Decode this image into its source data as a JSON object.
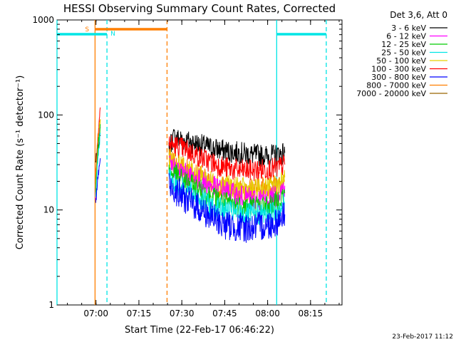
{
  "chart_data": {
    "type": "line",
    "title": "HESSI Observing Summary Count Rates, Corrected",
    "xlabel": "Start Time (22-Feb-17 06:46:22)",
    "ylabel": "Corrected Count Rate (s⁻¹ detector⁻¹)",
    "y_scale": "log",
    "ylim": [
      1,
      1000
    ],
    "xlim": [
      "06:46:22",
      "08:26:00"
    ],
    "x_ticks": [
      "07:00",
      "07:15",
      "07:30",
      "07:45",
      "08:00",
      "08:15"
    ],
    "y_ticks": [
      "1",
      "10",
      "100",
      "1000"
    ],
    "grid": false,
    "legend_position": "right",
    "legend_header": "Det 3,6, Att 0",
    "timestamp": "23-Feb-2017 11:12",
    "flags": [
      {
        "label": "S",
        "color": "#ff7f00",
        "start": "06:59:40",
        "end": "07:24:50"
      },
      {
        "label": "N",
        "color": "#00e5e5",
        "start": "06:46:22",
        "end": "07:03:50"
      },
      {
        "label": "",
        "color": "#00e5e5",
        "start": "08:03:10",
        "end": "08:20:30"
      }
    ],
    "series": [
      {
        "name": "3 - 6 keV",
        "color": "#000000",
        "times": [
          "06:59:50",
          "07:00:40",
          "07:01:30",
          "07:25:30",
          "07:27:00",
          "07:30:00",
          "07:35:00",
          "07:40:00",
          "07:45:00",
          "07:50:00",
          "07:55:00",
          "08:00:00",
          "08:03:00",
          "08:06:00"
        ],
        "values": [
          32,
          45,
          60,
          45,
          58,
          55,
          50,
          45,
          42,
          40,
          38,
          37,
          38,
          40
        ]
      },
      {
        "name": "6 - 12 keV",
        "color": "#ff00ff",
        "times": [
          "06:59:50",
          "07:00:40",
          "07:01:30",
          "07:25:30",
          "07:27:00",
          "07:30:00",
          "07:35:00",
          "07:40:00",
          "07:45:00",
          "07:50:00",
          "07:55:00",
          "08:00:00",
          "08:03:00",
          "08:06:00"
        ],
        "values": [
          14,
          40,
          75,
          30,
          28,
          25,
          21,
          18,
          16,
          14,
          13,
          13,
          14,
          18
        ]
      },
      {
        "name": "12 - 25 keV",
        "color": "#00cc00",
        "times": [
          "06:59:50",
          "07:00:40",
          "07:01:30",
          "07:25:30",
          "07:27:00",
          "07:30:00",
          "07:35:00",
          "07:40:00",
          "07:45:00",
          "07:50:00",
          "07:55:00",
          "08:00:00",
          "08:03:00",
          "08:06:00"
        ],
        "values": [
          15,
          42,
          80,
          25,
          24,
          21,
          17,
          14,
          12,
          11,
          11,
          11,
          12,
          15
        ]
      },
      {
        "name": "25 - 50 keV",
        "color": "#00e5e5",
        "times": [
          "06:59:50",
          "07:00:40",
          "07:01:30",
          "07:25:30",
          "07:27:00",
          "07:30:00",
          "07:35:00",
          "07:40:00",
          "07:45:00",
          "07:50:00",
          "07:55:00",
          "08:00:00",
          "08:03:00",
          "08:06:00"
        ],
        "values": [
          13,
          35,
          65,
          22,
          20,
          17,
          14,
          11,
          10,
          9,
          9,
          9,
          10,
          12
        ]
      },
      {
        "name": "50 - 100 keV",
        "color": "#e5d000",
        "times": [
          "06:59:50",
          "07:00:40",
          "07:01:30",
          "07:25:30",
          "07:27:00",
          "07:30:00",
          "07:35:00",
          "07:40:00",
          "07:45:00",
          "07:50:00",
          "07:55:00",
          "08:00:00",
          "08:03:00",
          "08:06:00"
        ],
        "values": [
          18,
          50,
          90,
          35,
          32,
          28,
          24,
          20,
          18,
          17,
          16,
          17,
          18,
          22
        ]
      },
      {
        "name": "100 - 300 keV",
        "color": "#ff0000",
        "times": [
          "06:59:50",
          "07:00:40",
          "07:01:30",
          "07:25:30",
          "07:27:00",
          "07:30:00",
          "07:35:00",
          "07:40:00",
          "07:45:00",
          "07:50:00",
          "07:55:00",
          "08:00:00",
          "08:03:00",
          "08:06:00"
        ],
        "values": [
          20,
          60,
          120,
          50,
          48,
          45,
          38,
          32,
          28,
          26,
          26,
          27,
          27,
          30
        ]
      },
      {
        "name": "300 - 800 keV",
        "color": "#0000ff",
        "times": [
          "06:59:50",
          "07:00:40",
          "07:01:30",
          "07:25:30",
          "07:27:00",
          "07:30:00",
          "07:35:00",
          "07:40:00",
          "07:45:00",
          "07:50:00",
          "07:55:00",
          "08:00:00",
          "08:03:00",
          "08:06:00"
        ],
        "values": [
          11,
          22,
          35,
          18,
          17,
          14,
          11,
          8.5,
          7,
          6.5,
          6.5,
          7,
          7.5,
          9
        ]
      },
      {
        "name": "800 - 7000 keV",
        "color": "#ff7f00",
        "times": [
          "06:59:50",
          "07:00:40",
          "07:01:30",
          "07:25:30",
          "07:27:00",
          "07:30:00",
          "07:35:00",
          "07:40:00",
          "07:45:00",
          "07:50:00",
          "07:55:00",
          "08:00:00",
          "08:03:00",
          "08:06:00"
        ],
        "values": [
          25,
          55,
          90,
          33,
          31,
          28,
          24,
          19,
          17,
          16,
          17,
          18,
          18,
          20
        ]
      },
      {
        "name": "7000 - 20000 keV",
        "color": "#996600",
        "times": [],
        "values": []
      }
    ],
    "markers": [
      {
        "color": "#ff7f00",
        "style": "solid",
        "time": "06:59:40"
      },
      {
        "color": "#00e5e5",
        "style": "dashed",
        "time": "07:03:50"
      },
      {
        "color": "#ff7f00",
        "style": "dashed",
        "time": "07:24:50"
      },
      {
        "color": "#00e5e5",
        "style": "solid",
        "time": "08:03:10"
      },
      {
        "color": "#00e5e5",
        "style": "dashed",
        "time": "08:20:30"
      },
      {
        "color": "#00e5e5",
        "style": "solid",
        "time": "06:46:22"
      }
    ]
  }
}
